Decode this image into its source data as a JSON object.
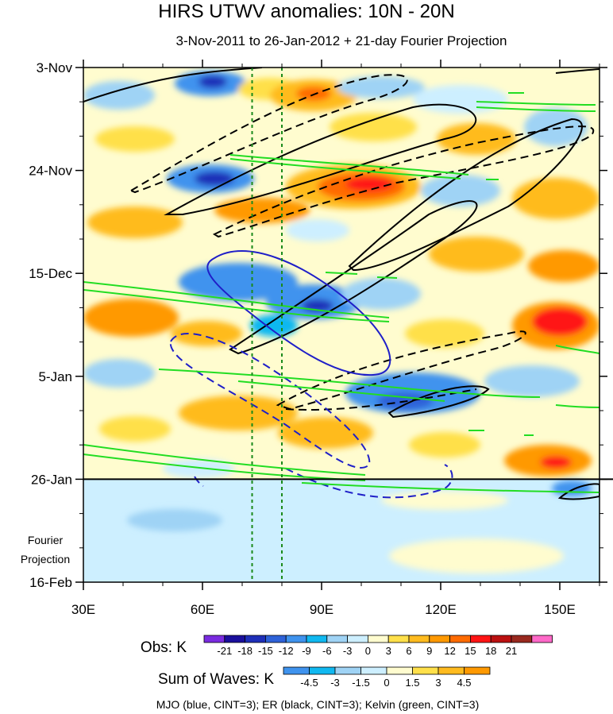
{
  "chart_data": {
    "type": "heatmap",
    "title": "HIRS UTWV anomalies: 10N - 20N",
    "subtitle": "3-Nov-2011 to 26-Jan-2012 + 21-day Fourier Projection",
    "x_axis": {
      "unit": "degrees longitude",
      "range": [
        30,
        160
      ],
      "ticks": [
        30,
        60,
        90,
        120,
        150
      ],
      "tick_labels": [
        "30E",
        "60E",
        "90E",
        "120E",
        "150E"
      ]
    },
    "y_axis": {
      "unit": "days since 3-Nov-2011 (downward)",
      "range": [
        0,
        105
      ],
      "ticks": [
        0,
        21,
        42,
        63,
        84,
        105
      ],
      "tick_labels": [
        "3-Nov",
        "24-Nov",
        "15-Dec",
        "5-Jan",
        "26-Jan",
        "16-Feb"
      ]
    },
    "observation_end_day": 84,
    "projection_label": [
      "Fourier",
      "Projection"
    ],
    "reference_longitudes": [
      72.5,
      80
    ],
    "obs_colorbar": {
      "label": "Obs: K",
      "levels": [
        "-21",
        "-18",
        "-15",
        "-12",
        "-9",
        "-6",
        "-3",
        "0",
        "3",
        "6",
        "9",
        "12",
        "15",
        "18",
        "21"
      ],
      "colors": [
        "#7a2be0",
        "#1a0f9c",
        "#1e2fb8",
        "#2e62d8",
        "#3f93ee",
        "#10b8f0",
        "#9fd3f5",
        "#cdefff",
        "#fffccf",
        "#ffe04a",
        "#ffbb1f",
        "#ff9900",
        "#ff6b00",
        "#ff1414",
        "#bb1010",
        "#99291f",
        "#ff69c8"
      ]
    },
    "waves_colorbar": {
      "label": "Sum of Waves: K",
      "levels": [
        "-4.5",
        "-3",
        "-1.5",
        "0",
        "1.5",
        "3",
        "4.5"
      ],
      "colors": [
        "#3f93ee",
        "#10b8f0",
        "#9fd3f5",
        "#cdefff",
        "#fffccf",
        "#ffe04a",
        "#ffbb1f",
        "#ff9900"
      ]
    },
    "caption": "MJO (blue, CINT=3); ER (black, CINT=3); Kelvin (green, CINT=3)",
    "contour_series": [
      {
        "name": "MJO",
        "color": "#1f1fc8",
        "cint": 3
      },
      {
        "name": "ER",
        "color": "#000000",
        "cint": 3
      },
      {
        "name": "Kelvin",
        "color": "#22dd22",
        "cint": 3
      }
    ]
  }
}
